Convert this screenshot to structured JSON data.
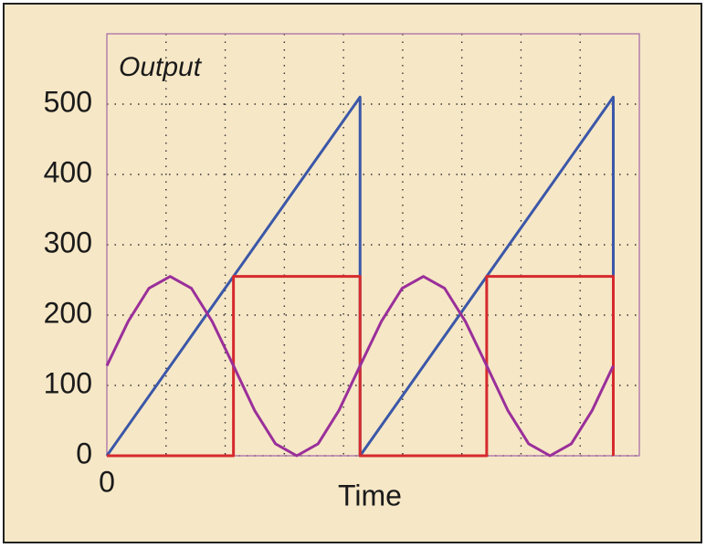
{
  "chart_data": {
    "type": "line",
    "title": "Output",
    "x_label": "Time",
    "xlim": [
      0,
      9
    ],
    "xticks": [
      0
    ],
    "x_grid": [
      1,
      2,
      3,
      4,
      5,
      6,
      7,
      8
    ],
    "ylim": [
      0,
      600
    ],
    "yticks": [
      0,
      100,
      200,
      300,
      400,
      500
    ],
    "grid": true,
    "series": [
      {
        "color": "#3b57a8",
        "x": [
          0,
          4.28,
          4.28,
          8.56,
          8.56
        ],
        "values": [
          0,
          510,
          0,
          510,
          255
        ]
      },
      {
        "color": "#d62a2e",
        "x": [
          0,
          2.14,
          2.14,
          4.28,
          4.28,
          6.42,
          6.42,
          8.56,
          8.56
        ],
        "values": [
          0,
          0,
          255,
          255,
          0,
          0,
          255,
          255,
          0
        ]
      },
      {
        "color": "#9a2f9a",
        "x": [
          0,
          0.36,
          0.71,
          1.07,
          1.43,
          1.78,
          2.14,
          2.5,
          2.85,
          3.21,
          3.57,
          3.92,
          4.28,
          4.64,
          4.99,
          5.35,
          5.71,
          6.06,
          6.42,
          6.78,
          7.13,
          7.49,
          7.85,
          8.2,
          8.56
        ],
        "values": [
          128,
          191,
          238,
          255,
          238,
          191,
          128,
          64,
          17,
          0,
          17,
          64,
          128,
          191,
          238,
          255,
          238,
          191,
          128,
          64,
          17,
          0,
          17,
          64,
          128
        ]
      }
    ]
  }
}
